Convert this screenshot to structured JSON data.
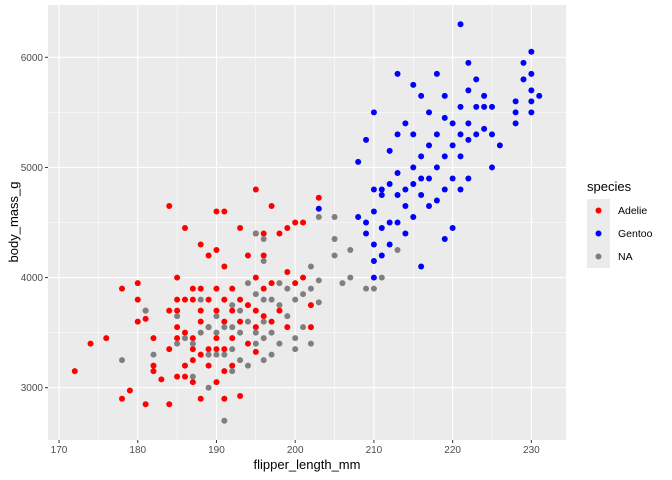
{
  "chart_data": {
    "type": "scatter",
    "xlabel": "flipper_length_mm",
    "ylabel": "body_mass_g",
    "xlim": [
      168.6,
      234.4
    ],
    "ylim": [
      2525,
      6475
    ],
    "x_ticks": [
      170,
      180,
      190,
      200,
      210,
      220,
      230
    ],
    "y_ticks": [
      3000,
      4000,
      5000,
      6000
    ],
    "grid": true,
    "legend": {
      "title": "species",
      "position": "right"
    },
    "series": [
      {
        "name": "Adelie",
        "color": "#ff0000",
        "points": [
          [
            172,
            3150
          ],
          [
            174,
            3400
          ],
          [
            176,
            3450
          ],
          [
            178,
            3900
          ],
          [
            178,
            2900
          ],
          [
            179,
            2975
          ],
          [
            180,
            3950
          ],
          [
            180,
            3800
          ],
          [
            180,
            3600
          ],
          [
            181,
            3700
          ],
          [
            181,
            3625
          ],
          [
            181,
            2850
          ],
          [
            182,
            3200
          ],
          [
            182,
            3450
          ],
          [
            182,
            3150
          ],
          [
            183,
            3075
          ],
          [
            184,
            4650
          ],
          [
            184,
            3700
          ],
          [
            184,
            3350
          ],
          [
            184,
            2850
          ],
          [
            185,
            4000
          ],
          [
            185,
            3800
          ],
          [
            185,
            3700
          ],
          [
            185,
            3550
          ],
          [
            185,
            3450
          ],
          [
            185,
            3100
          ],
          [
            186,
            4450
          ],
          [
            186,
            3800
          ],
          [
            186,
            3500
          ],
          [
            186,
            3200
          ],
          [
            186,
            3100
          ],
          [
            187,
            3900
          ],
          [
            187,
            3800
          ],
          [
            187,
            3450
          ],
          [
            187,
            3350
          ],
          [
            187,
            3250
          ],
          [
            187,
            3050
          ],
          [
            188,
            4300
          ],
          [
            188,
            3900
          ],
          [
            188,
            3700
          ],
          [
            188,
            3600
          ],
          [
            188,
            3300
          ],
          [
            188,
            2900
          ],
          [
            189,
            4200
          ],
          [
            189,
            3800
          ],
          [
            189,
            3550
          ],
          [
            189,
            3350
          ],
          [
            189,
            3200
          ],
          [
            190,
            4600
          ],
          [
            190,
            4250
          ],
          [
            190,
            3900
          ],
          [
            190,
            3700
          ],
          [
            190,
            3450
          ],
          [
            190,
            3350
          ],
          [
            190,
            3050
          ],
          [
            191,
            4600
          ],
          [
            191,
            4100
          ],
          [
            191,
            3800
          ],
          [
            191,
            3600
          ],
          [
            191,
            3350
          ],
          [
            191,
            3150
          ],
          [
            191,
            2900
          ],
          [
            192,
            3900
          ],
          [
            192,
            3700
          ],
          [
            192,
            3450
          ],
          [
            192,
            3200
          ],
          [
            193,
            4450
          ],
          [
            193,
            3800
          ],
          [
            193,
            3600
          ],
          [
            193,
            2925
          ],
          [
            194,
            4200
          ],
          [
            194,
            3750
          ],
          [
            194,
            3400
          ],
          [
            195,
            4800
          ],
          [
            195,
            4400
          ],
          [
            195,
            4000
          ],
          [
            195,
            3700
          ],
          [
            195,
            3550
          ],
          [
            195,
            3325
          ],
          [
            196,
            4400
          ],
          [
            196,
            4200
          ],
          [
            196,
            3900
          ],
          [
            196,
            3650
          ],
          [
            197,
            4650
          ],
          [
            197,
            3950
          ],
          [
            197,
            3600
          ],
          [
            198,
            4400
          ],
          [
            198,
            3700
          ],
          [
            199,
            4450
          ],
          [
            199,
            4050
          ],
          [
            199,
            3550
          ],
          [
            200,
            4500
          ],
          [
            200,
            3950
          ],
          [
            201,
            4500
          ],
          [
            201,
            4000
          ],
          [
            202,
            3750
          ],
          [
            202,
            3550
          ],
          [
            203,
            4725
          ]
        ]
      },
      {
        "name": "Gentoo",
        "color": "#0000ff",
        "points": [
          [
            203,
            4625
          ],
          [
            208,
            5050
          ],
          [
            208,
            4550
          ],
          [
            209,
            5250
          ],
          [
            209,
            4500
          ],
          [
            209,
            4400
          ],
          [
            210,
            5500
          ],
          [
            210,
            4800
          ],
          [
            210,
            4600
          ],
          [
            210,
            4300
          ],
          [
            210,
            4150
          ],
          [
            210,
            4000
          ],
          [
            211,
            4800
          ],
          [
            211,
            4750
          ],
          [
            211,
            4450
          ],
          [
            211,
            4200
          ],
          [
            212,
            5150
          ],
          [
            212,
            4850
          ],
          [
            212,
            4500
          ],
          [
            212,
            4300
          ],
          [
            213,
            5850
          ],
          [
            213,
            5300
          ],
          [
            213,
            4950
          ],
          [
            213,
            4750
          ],
          [
            213,
            4500
          ],
          [
            214,
            5400
          ],
          [
            214,
            4800
          ],
          [
            214,
            4650
          ],
          [
            214,
            4400
          ],
          [
            215,
            5750
          ],
          [
            215,
            5300
          ],
          [
            215,
            5000
          ],
          [
            215,
            4850
          ],
          [
            215,
            4550
          ],
          [
            216,
            5650
          ],
          [
            216,
            5100
          ],
          [
            216,
            4900
          ],
          [
            216,
            4750
          ],
          [
            216,
            4100
          ],
          [
            217,
            5500
          ],
          [
            217,
            5200
          ],
          [
            217,
            4900
          ],
          [
            217,
            4650
          ],
          [
            218,
            5850
          ],
          [
            218,
            5300
          ],
          [
            218,
            5000
          ],
          [
            218,
            4700
          ],
          [
            219,
            5650
          ],
          [
            219,
            5450
          ],
          [
            219,
            5100
          ],
          [
            219,
            4800
          ],
          [
            219,
            4350
          ],
          [
            220,
            5400
          ],
          [
            220,
            5200
          ],
          [
            220,
            4900
          ],
          [
            220,
            4450
          ],
          [
            221,
            6300
          ],
          [
            221,
            5550
          ],
          [
            221,
            5300
          ],
          [
            221,
            5100
          ],
          [
            221,
            4800
          ],
          [
            222,
            5950
          ],
          [
            222,
            5700
          ],
          [
            222,
            5400
          ],
          [
            222,
            5250
          ],
          [
            222,
            4900
          ],
          [
            223,
            5800
          ],
          [
            223,
            5550
          ],
          [
            223,
            5300
          ],
          [
            224,
            5650
          ],
          [
            224,
            5550
          ],
          [
            224,
            5350
          ],
          [
            225,
            5550
          ],
          [
            225,
            5300
          ],
          [
            225,
            5000
          ],
          [
            226,
            5200
          ],
          [
            228,
            5600
          ],
          [
            228,
            5500
          ],
          [
            228,
            5400
          ],
          [
            229,
            5950
          ],
          [
            229,
            5800
          ],
          [
            230,
            6050
          ],
          [
            230,
            5850
          ],
          [
            230,
            5700
          ],
          [
            230,
            5600
          ],
          [
            230,
            5500
          ],
          [
            231,
            5650
          ]
        ]
      },
      {
        "name": "NA",
        "color": "#7f7f7f",
        "points": [
          [
            178,
            3250
          ],
          [
            181,
            3700
          ],
          [
            182,
            3300
          ],
          [
            185,
            3650
          ],
          [
            186,
            3450
          ],
          [
            187,
            3400
          ],
          [
            187,
            3100
          ],
          [
            188,
            3500
          ],
          [
            189,
            3550
          ],
          [
            189,
            3300
          ],
          [
            189,
            3000
          ],
          [
            190,
            3500
          ],
          [
            190,
            3300
          ],
          [
            191,
            3550
          ],
          [
            191,
            3300
          ],
          [
            191,
            2700
          ],
          [
            192,
            3750
          ],
          [
            192,
            3550
          ],
          [
            192,
            3350
          ],
          [
            193,
            3700
          ],
          [
            193,
            3500
          ],
          [
            193,
            3250
          ],
          [
            194,
            3600
          ],
          [
            194,
            3200
          ],
          [
            195,
            4400
          ],
          [
            195,
            3850
          ],
          [
            195,
            3500
          ],
          [
            195,
            3400
          ],
          [
            196,
            4350
          ],
          [
            196,
            4150
          ],
          [
            196,
            3800
          ],
          [
            196,
            3450
          ],
          [
            196,
            3250
          ],
          [
            197,
            3800
          ],
          [
            197,
            3500
          ],
          [
            197,
            3300
          ],
          [
            198,
            3950
          ],
          [
            198,
            3750
          ],
          [
            198,
            3400
          ],
          [
            199,
            3900
          ],
          [
            199,
            3650
          ],
          [
            200,
            3800
          ],
          [
            200,
            3450
          ],
          [
            201,
            3850
          ],
          [
            201,
            3550
          ],
          [
            202,
            4100
          ],
          [
            202,
            3900
          ],
          [
            202,
            3400
          ],
          [
            203,
            3975
          ],
          [
            203,
            3775
          ],
          [
            205,
            4350
          ],
          [
            205,
            4550
          ],
          [
            205,
            4200
          ],
          [
            206,
            3950
          ],
          [
            207,
            4000
          ],
          [
            207,
            4250
          ],
          [
            209,
            3900
          ],
          [
            210,
            3900
          ],
          [
            211,
            4000
          ],
          [
            213,
            4250
          ],
          [
            203,
            4550
          ],
          [
            190,
            3650
          ],
          [
            194,
            3950
          ],
          [
            188,
            3800
          ],
          [
            185,
            3400
          ],
          [
            200,
            3350
          ],
          [
            196,
            3600
          ],
          [
            192,
            3150
          ]
        ]
      }
    ]
  }
}
